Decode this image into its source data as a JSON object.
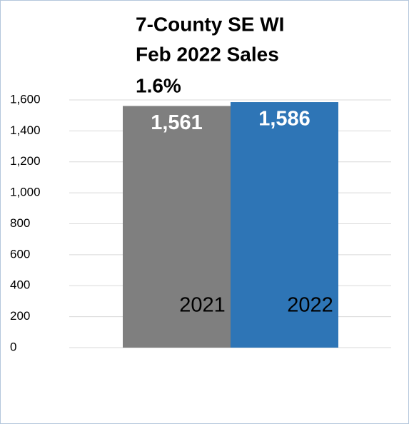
{
  "chart_data": {
    "type": "bar",
    "title": [
      "7-County SE WI",
      "Feb 2022 Sales"
    ],
    "subtitle": "1.6%",
    "categories": [
      "2021",
      "2022"
    ],
    "values": [
      1561,
      1586
    ],
    "value_labels": [
      "1,561",
      "1,586"
    ],
    "colors": [
      "#7f7f7f",
      "#2e75b6"
    ],
    "ylim": [
      0,
      1600
    ],
    "yticks": [
      0,
      200,
      400,
      600,
      800,
      {
        "value": 1000,
        "label": "1,000"
      },
      {
        "value": 1200,
        "label": "1,200"
      },
      {
        "value": 1400,
        "label": "1,400"
      },
      {
        "value": 1600,
        "label": "1,600"
      }
    ],
    "grid": true
  }
}
